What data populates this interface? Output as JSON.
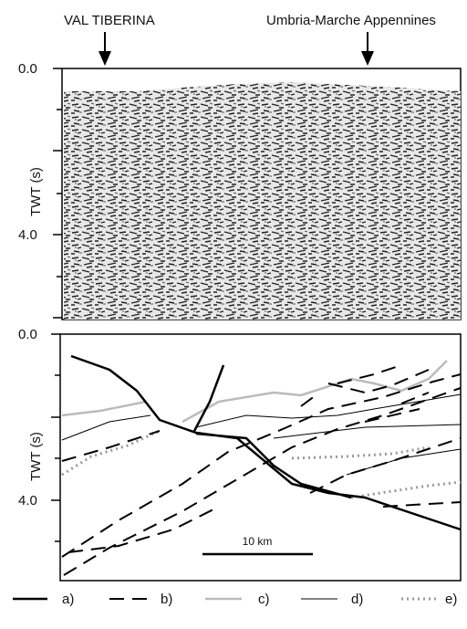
{
  "header": {
    "left_label": "VAL TIBERINA",
    "right_label": "Umbria-Marche Appennines"
  },
  "seismic_panel": {
    "axis_label": "TWT (s)",
    "tick_labels": [
      "0.0",
      "4.0"
    ]
  },
  "interpretation_panel": {
    "axis_label": "TWT (s)",
    "tick_labels": [
      "0.0",
      "4.0"
    ],
    "scale_bar": "10 km"
  },
  "legend": [
    "a)",
    "b)",
    "c)",
    "d)",
    "e)"
  ]
}
